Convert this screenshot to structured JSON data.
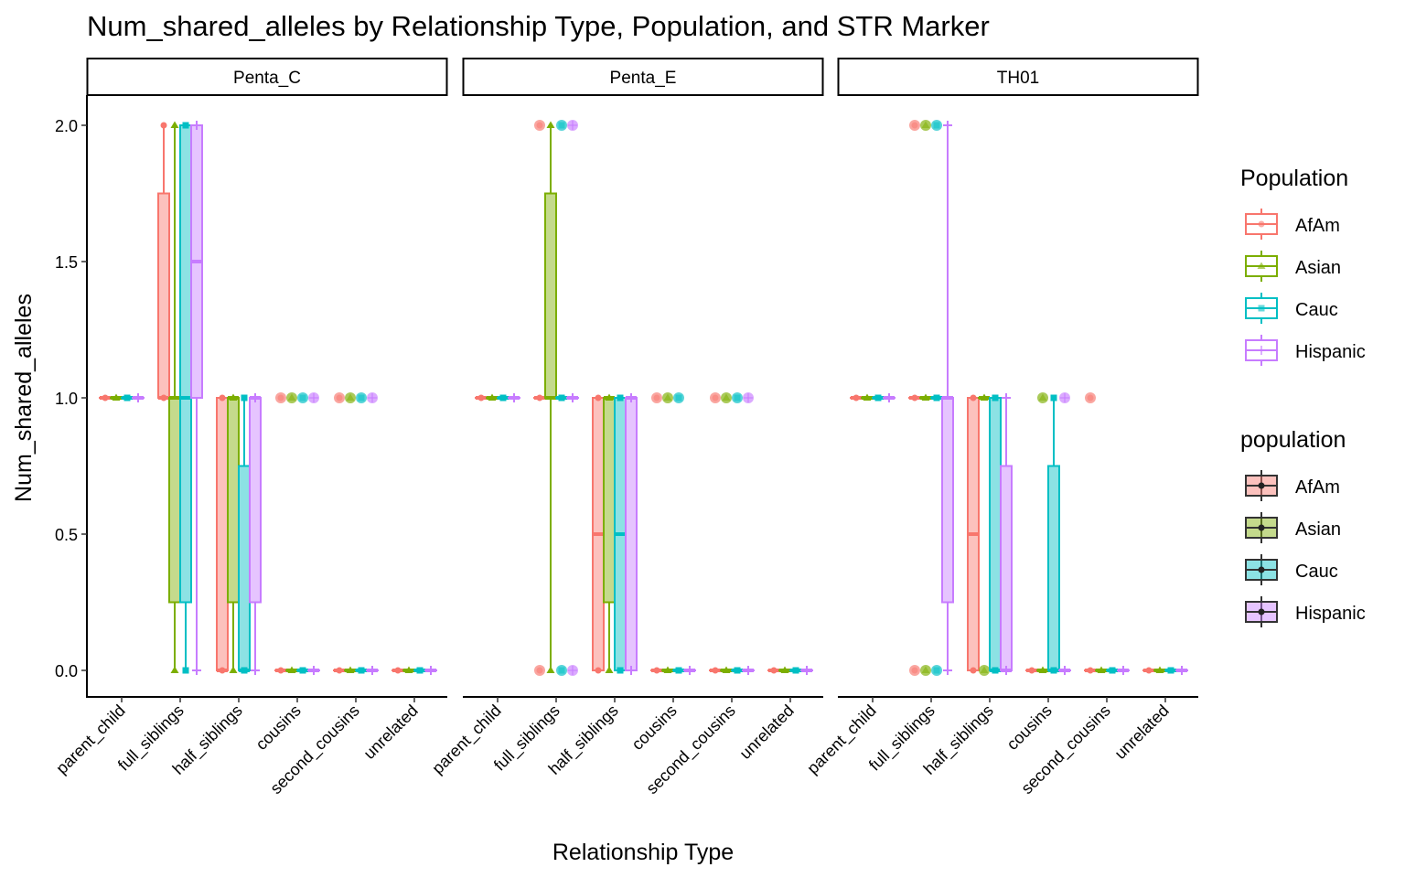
{
  "chart_data": {
    "type": "boxplot",
    "title": "Num_shared_alleles by Relationship Type, Population, and STR Marker",
    "xlabel": "Relationship Type",
    "ylabel": "Num_shared_alleles",
    "ylim": [
      -0.1,
      2.1
    ],
    "yticks": [
      0.0,
      0.5,
      1.0,
      1.5,
      2.0
    ],
    "ytick_labels": [
      "0.0",
      "0.5",
      "1.0",
      "1.5",
      "2.0"
    ],
    "grid": false,
    "categories": [
      "parent_child",
      "full_siblings",
      "half_siblings",
      "cousins",
      "second_cousins",
      "unrelated"
    ],
    "populations": [
      "AfAm",
      "Asian",
      "Cauc",
      "Hispanic"
    ],
    "colors": {
      "AfAm": "#F8766D",
      "Asian": "#7CAE00",
      "Cauc": "#00BFC4",
      "Hispanic": "#C77CFF"
    },
    "stat_order": [
      "min",
      "q1",
      "median",
      "q3",
      "max"
    ],
    "facets": [
      {
        "name": "Penta_C",
        "boxes": {
          "parent_child": {
            "AfAm": {
              "s": [
                1,
                1,
                1,
                1,
                1
              ],
              "o": []
            },
            "Asian": {
              "s": [
                1,
                1,
                1,
                1,
                1
              ],
              "o": []
            },
            "Cauc": {
              "s": [
                1,
                1,
                1,
                1,
                1
              ],
              "o": []
            },
            "Hispanic": {
              "s": [
                1,
                1,
                1,
                1,
                1
              ],
              "o": []
            }
          },
          "full_siblings": {
            "AfAm": {
              "s": [
                1,
                1,
                1,
                1.75,
                2
              ],
              "o": []
            },
            "Asian": {
              "s": [
                0,
                0.25,
                1,
                1,
                2
              ],
              "o": []
            },
            "Cauc": {
              "s": [
                0,
                0.25,
                1,
                2,
                2
              ],
              "o": []
            },
            "Hispanic": {
              "s": [
                0,
                1,
                1.5,
                2,
                2
              ],
              "o": []
            }
          },
          "half_siblings": {
            "AfAm": {
              "s": [
                0,
                0,
                0,
                1,
                1
              ],
              "o": []
            },
            "Asian": {
              "s": [
                0,
                0.25,
                1,
                1,
                1
              ],
              "o": []
            },
            "Cauc": {
              "s": [
                0,
                0,
                0,
                0.75,
                1
              ],
              "o": []
            },
            "Hispanic": {
              "s": [
                0,
                0.25,
                1,
                1,
                1
              ],
              "o": []
            }
          },
          "cousins": {
            "AfAm": {
              "s": [
                0,
                0,
                0,
                0,
                0
              ],
              "o": [
                1
              ]
            },
            "Asian": {
              "s": [
                0,
                0,
                0,
                0,
                0
              ],
              "o": [
                1
              ]
            },
            "Cauc": {
              "s": [
                0,
                0,
                0,
                0,
                0
              ],
              "o": [
                1
              ]
            },
            "Hispanic": {
              "s": [
                0,
                0,
                0,
                0,
                0
              ],
              "o": [
                1
              ]
            }
          },
          "second_cousins": {
            "AfAm": {
              "s": [
                0,
                0,
                0,
                0,
                0
              ],
              "o": [
                1
              ]
            },
            "Asian": {
              "s": [
                0,
                0,
                0,
                0,
                0
              ],
              "o": [
                1
              ]
            },
            "Cauc": {
              "s": [
                0,
                0,
                0,
                0,
                0
              ],
              "o": [
                1
              ]
            },
            "Hispanic": {
              "s": [
                0,
                0,
                0,
                0,
                0
              ],
              "o": [
                1
              ]
            }
          },
          "unrelated": {
            "AfAm": {
              "s": [
                0,
                0,
                0,
                0,
                0
              ],
              "o": []
            },
            "Asian": {
              "s": [
                0,
                0,
                0,
                0,
                0
              ],
              "o": []
            },
            "Cauc": {
              "s": [
                0,
                0,
                0,
                0,
                0
              ],
              "o": []
            },
            "Hispanic": {
              "s": [
                0,
                0,
                0,
                0,
                0
              ],
              "o": []
            }
          }
        }
      },
      {
        "name": "Penta_E",
        "boxes": {
          "parent_child": {
            "AfAm": {
              "s": [
                1,
                1,
                1,
                1,
                1
              ],
              "o": []
            },
            "Asian": {
              "s": [
                1,
                1,
                1,
                1,
                1
              ],
              "o": []
            },
            "Cauc": {
              "s": [
                1,
                1,
                1,
                1,
                1
              ],
              "o": []
            },
            "Hispanic": {
              "s": [
                1,
                1,
                1,
                1,
                1
              ],
              "o": []
            }
          },
          "full_siblings": {
            "AfAm": {
              "s": [
                1,
                1,
                1,
                1,
                1
              ],
              "o": [
                2,
                0
              ]
            },
            "Asian": {
              "s": [
                0,
                1,
                1,
                1.75,
                2
              ],
              "o": []
            },
            "Cauc": {
              "s": [
                1,
                1,
                1,
                1,
                1
              ],
              "o": [
                2,
                0
              ]
            },
            "Hispanic": {
              "s": [
                1,
                1,
                1,
                1,
                1
              ],
              "o": [
                2,
                0
              ]
            }
          },
          "half_siblings": {
            "AfAm": {
              "s": [
                0,
                0,
                0.5,
                1,
                1
              ],
              "o": []
            },
            "Asian": {
              "s": [
                0,
                0.25,
                1,
                1,
                1
              ],
              "o": []
            },
            "Cauc": {
              "s": [
                0,
                0,
                0.5,
                1,
                1
              ],
              "o": []
            },
            "Hispanic": {
              "s": [
                0,
                0,
                1,
                1,
                1
              ],
              "o": []
            }
          },
          "cousins": {
            "AfAm": {
              "s": [
                0,
                0,
                0,
                0,
                0
              ],
              "o": [
                1
              ]
            },
            "Asian": {
              "s": [
                0,
                0,
                0,
                0,
                0
              ],
              "o": [
                1
              ]
            },
            "Cauc": {
              "s": [
                0,
                0,
                0,
                0,
                0
              ],
              "o": [
                1
              ]
            },
            "Hispanic": {
              "s": [
                0,
                0,
                0,
                0,
                0
              ],
              "o": []
            }
          },
          "second_cousins": {
            "AfAm": {
              "s": [
                0,
                0,
                0,
                0,
                0
              ],
              "o": [
                1
              ]
            },
            "Asian": {
              "s": [
                0,
                0,
                0,
                0,
                0
              ],
              "o": [
                1
              ]
            },
            "Cauc": {
              "s": [
                0,
                0,
                0,
                0,
                0
              ],
              "o": [
                1
              ]
            },
            "Hispanic": {
              "s": [
                0,
                0,
                0,
                0,
                0
              ],
              "o": [
                1
              ]
            }
          },
          "unrelated": {
            "AfAm": {
              "s": [
                0,
                0,
                0,
                0,
                0
              ],
              "o": []
            },
            "Asian": {
              "s": [
                0,
                0,
                0,
                0,
                0
              ],
              "o": []
            },
            "Cauc": {
              "s": [
                0,
                0,
                0,
                0,
                0
              ],
              "o": []
            },
            "Hispanic": {
              "s": [
                0,
                0,
                0,
                0,
                0
              ],
              "o": []
            }
          }
        }
      },
      {
        "name": "TH01",
        "boxes": {
          "parent_child": {
            "AfAm": {
              "s": [
                1,
                1,
                1,
                1,
                1
              ],
              "o": []
            },
            "Asian": {
              "s": [
                1,
                1,
                1,
                1,
                1
              ],
              "o": []
            },
            "Cauc": {
              "s": [
                1,
                1,
                1,
                1,
                1
              ],
              "o": []
            },
            "Hispanic": {
              "s": [
                1,
                1,
                1,
                1,
                1
              ],
              "o": []
            }
          },
          "full_siblings": {
            "AfAm": {
              "s": [
                1,
                1,
                1,
                1,
                1
              ],
              "o": [
                2,
                0
              ]
            },
            "Asian": {
              "s": [
                1,
                1,
                1,
                1,
                1
              ],
              "o": [
                2,
                0
              ]
            },
            "Cauc": {
              "s": [
                1,
                1,
                1,
                1,
                1
              ],
              "o": [
                2,
                0
              ]
            },
            "Hispanic": {
              "s": [
                0,
                0.25,
                1,
                1,
                2
              ],
              "o": []
            }
          },
          "half_siblings": {
            "AfAm": {
              "s": [
                0,
                0,
                0.5,
                1,
                1
              ],
              "o": []
            },
            "Asian": {
              "s": [
                1,
                1,
                1,
                1,
                1
              ],
              "o": [
                0
              ]
            },
            "Cauc": {
              "s": [
                0,
                0,
                0,
                1,
                1
              ],
              "o": []
            },
            "Hispanic": {
              "s": [
                0,
                0,
                0,
                0.75,
                1
              ],
              "o": []
            }
          },
          "cousins": {
            "AfAm": {
              "s": [
                0,
                0,
                0,
                0,
                0
              ],
              "o": []
            },
            "Asian": {
              "s": [
                0,
                0,
                0,
                0,
                0
              ],
              "o": [
                1
              ]
            },
            "Cauc": {
              "s": [
                0,
                0,
                0,
                0.75,
                1
              ],
              "o": []
            },
            "Hispanic": {
              "s": [
                0,
                0,
                0,
                0,
                0
              ],
              "o": [
                1
              ]
            }
          },
          "second_cousins": {
            "AfAm": {
              "s": [
                0,
                0,
                0,
                0,
                0
              ],
              "o": [
                1
              ]
            },
            "Asian": {
              "s": [
                0,
                0,
                0,
                0,
                0
              ],
              "o": []
            },
            "Cauc": {
              "s": [
                0,
                0,
                0,
                0,
                0
              ],
              "o": []
            },
            "Hispanic": {
              "s": [
                0,
                0,
                0,
                0,
                0
              ],
              "o": []
            }
          },
          "unrelated": {
            "AfAm": {
              "s": [
                0,
                0,
                0,
                0,
                0
              ],
              "o": []
            },
            "Asian": {
              "s": [
                0,
                0,
                0,
                0,
                0
              ],
              "o": []
            },
            "Cauc": {
              "s": [
                0,
                0,
                0,
                0,
                0
              ],
              "o": []
            },
            "Hispanic": {
              "s": [
                0,
                0,
                0,
                0,
                0
              ],
              "o": []
            }
          }
        }
      }
    ],
    "legends": [
      {
        "title": "Population",
        "entries": [
          "AfAm",
          "Asian",
          "Cauc",
          "Hispanic"
        ],
        "style": "outline"
      },
      {
        "title": "population",
        "entries": [
          "AfAm",
          "Asian",
          "Cauc",
          "Hispanic"
        ],
        "style": "fill"
      }
    ],
    "legend_position": "right"
  }
}
